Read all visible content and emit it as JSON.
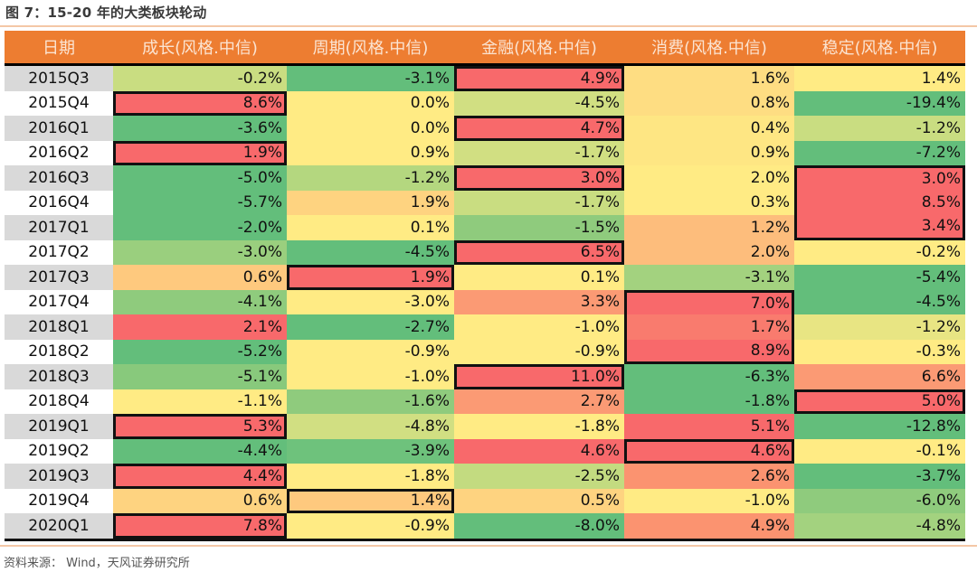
{
  "title": "图 7：15-20 年的大类板块轮动",
  "source": "资料来源：  Wind，天风证券研究所",
  "header": [
    "日期",
    "成长(风格.中信)",
    "周期(风格.中信)",
    "金融(风格.中信)",
    "消费(风格.中信)",
    "稳定(风格.中信)"
  ],
  "colors": {
    "header_bg": "#ED7D31",
    "red": "#F8696B",
    "red_orange": "#F98570",
    "orange": "#FB9A74",
    "light_orange": "#FDBD7C",
    "pale_orange": "#FED380",
    "yellow": "#FFEB84",
    "yellow_green": "#D1DF82",
    "light_green": "#B4D77F",
    "mid_green": "#8FCB7D",
    "green": "#63BE7B",
    "date_gray": "#D9D9D9",
    "date_white": "#FFFFFF"
  },
  "chart_data": {
    "type": "table",
    "title": "图 7：15-20 年的大类板块轮动",
    "columns": [
      "日期",
      "成长(风格.中信)",
      "周期(风格.中信)",
      "金融(风格.中信)",
      "消费(风格.中信)",
      "稳定(风格.中信)"
    ],
    "rows": [
      {
        "date": "2015Q3",
        "values": [
          "-0.2%",
          "-3.1%",
          "4.9%",
          "1.6%",
          "1.4%"
        ],
        "fills": [
          "#C9DD81",
          "#63BE7B",
          "#F8696B",
          "#FEDD82",
          "#FFEB84"
        ],
        "boxed": [
          false,
          false,
          true,
          false,
          false
        ]
      },
      {
        "date": "2015Q4",
        "values": [
          "8.6%",
          "0.0%",
          "-4.5%",
          "0.8%",
          "-19.4%"
        ],
        "fills": [
          "#F8696B",
          "#FFEB84",
          "#D1DF82",
          "#FEDD82",
          "#63BE7B"
        ],
        "boxed": [
          true,
          false,
          false,
          false,
          false
        ]
      },
      {
        "date": "2016Q1",
        "values": [
          "-3.6%",
          "0.0%",
          "4.7%",
          "0.4%",
          "-1.2%"
        ],
        "fills": [
          "#63BE7B",
          "#FFEB84",
          "#F8696B",
          "#FEE683",
          "#C9DD81"
        ],
        "boxed": [
          false,
          false,
          true,
          false,
          false
        ]
      },
      {
        "date": "2016Q2",
        "values": [
          "1.9%",
          "0.9%",
          "-1.7%",
          "0.9%",
          "-7.2%"
        ],
        "fills": [
          "#F8696B",
          "#FFEB84",
          "#D1DF82",
          "#FEE683",
          "#63BE7B"
        ],
        "boxed": [
          true,
          false,
          false,
          false,
          false
        ]
      },
      {
        "date": "2016Q3",
        "values": [
          "-5.0%",
          "-1.2%",
          "3.0%",
          "2.0%",
          "3.0%"
        ],
        "fills": [
          "#63BE7B",
          "#B4D77F",
          "#F8696B",
          "#FFEB84",
          "#F8696B"
        ],
        "boxed": [
          false,
          false,
          true,
          false,
          true
        ]
      },
      {
        "date": "2016Q4",
        "values": [
          "-5.7%",
          "1.9%",
          "-1.7%",
          "0.3%",
          "8.5%"
        ],
        "fills": [
          "#63BE7B",
          "#FED380",
          "#C9DD81",
          "#FFEB84",
          "#F8696B"
        ],
        "boxed": [
          false,
          false,
          false,
          false,
          true
        ]
      },
      {
        "date": "2017Q1",
        "values": [
          "-2.0%",
          "0.1%",
          "-1.5%",
          "1.2%",
          "3.4%"
        ],
        "fills": [
          "#63BE7B",
          "#FFEB84",
          "#8FCB7D",
          "#FDBD7C",
          "#F8696B"
        ],
        "boxed": [
          false,
          false,
          false,
          false,
          true
        ]
      },
      {
        "date": "2017Q2",
        "values": [
          "-3.0%",
          "-4.5%",
          "6.5%",
          "2.0%",
          "-0.2%"
        ],
        "fills": [
          "#9ACF7E",
          "#63BE7B",
          "#F8696B",
          "#FDBD7C",
          "#FFEB84"
        ],
        "boxed": [
          false,
          false,
          true,
          false,
          false
        ]
      },
      {
        "date": "2017Q3",
        "values": [
          "0.6%",
          "1.9%",
          "0.1%",
          "-3.1%",
          "-5.4%"
        ],
        "fills": [
          "#FEC97E",
          "#F8696B",
          "#FFEB84",
          "#A3D27F",
          "#63BE7B"
        ],
        "boxed": [
          false,
          true,
          false,
          false,
          false
        ]
      },
      {
        "date": "2017Q4",
        "values": [
          "-4.1%",
          "-3.0%",
          "3.3%",
          "7.0%",
          "-4.5%"
        ],
        "fills": [
          "#8FCB7D",
          "#FFEB84",
          "#FB9A74",
          "#F8696B",
          "#63BE7B"
        ],
        "boxed": [
          false,
          false,
          false,
          true,
          false
        ]
      },
      {
        "date": "2018Q1",
        "values": [
          "2.1%",
          "-2.7%",
          "-1.0%",
          "1.7%",
          "-1.2%"
        ],
        "fills": [
          "#F8696B",
          "#63BE7B",
          "#FFEB84",
          "#F97B6E",
          "#E8E583"
        ],
        "boxed": [
          false,
          false,
          false,
          true,
          false
        ]
      },
      {
        "date": "2018Q2",
        "values": [
          "-5.2%",
          "-0.9%",
          "-0.9%",
          "8.9%",
          "-0.3%"
        ],
        "fills": [
          "#63BE7B",
          "#FFEB84",
          "#FFEB84",
          "#F8696B",
          "#FFEB84"
        ],
        "boxed": [
          false,
          false,
          false,
          true,
          false
        ]
      },
      {
        "date": "2018Q3",
        "values": [
          "-5.1%",
          "-1.0%",
          "11.0%",
          "-6.3%",
          "6.6%"
        ],
        "fills": [
          "#88C97C",
          "#FFEB84",
          "#F8696B",
          "#63BE7B",
          "#FB9A74"
        ],
        "boxed": [
          false,
          false,
          true,
          false,
          false
        ]
      },
      {
        "date": "2018Q4",
        "values": [
          "-1.1%",
          "-1.6%",
          "2.7%",
          "-1.8%",
          "5.0%"
        ],
        "fills": [
          "#FFEB84",
          "#8FCB7D",
          "#FB9A74",
          "#63BE7B",
          "#F8696B"
        ],
        "boxed": [
          false,
          false,
          false,
          false,
          true
        ]
      },
      {
        "date": "2019Q1",
        "values": [
          "5.3%",
          "-4.8%",
          "-1.8%",
          "5.1%",
          "-12.8%"
        ],
        "fills": [
          "#F8696B",
          "#D1DF82",
          "#FFEB84",
          "#F8696B",
          "#63BE7B"
        ],
        "boxed": [
          true,
          false,
          false,
          false,
          false
        ]
      },
      {
        "date": "2019Q2",
        "values": [
          "-4.4%",
          "-3.9%",
          "4.6%",
          "4.6%",
          "-0.1%"
        ],
        "fills": [
          "#63BE7B",
          "#6EC27C",
          "#F8696B",
          "#F8696B",
          "#FFEB84"
        ],
        "boxed": [
          false,
          false,
          false,
          true,
          false
        ]
      },
      {
        "date": "2019Q3",
        "values": [
          "4.4%",
          "-1.8%",
          "-2.5%",
          "2.6%",
          "-3.7%"
        ],
        "fills": [
          "#F8696B",
          "#FFEB84",
          "#C3DB80",
          "#FB9370",
          "#63BE7B"
        ],
        "boxed": [
          true,
          false,
          false,
          false,
          false
        ]
      },
      {
        "date": "2019Q4",
        "values": [
          "0.6%",
          "1.4%",
          "0.5%",
          "-1.0%",
          "-6.0%"
        ],
        "fills": [
          "#FED380",
          "#FEC97E",
          "#FED380",
          "#FFEB84",
          "#8FCB7D"
        ],
        "boxed": [
          false,
          true,
          false,
          false,
          false
        ]
      },
      {
        "date": "2020Q1",
        "values": [
          "7.8%",
          "-0.9%",
          "-8.0%",
          "4.9%",
          "-4.8%"
        ],
        "fills": [
          "#F8696B",
          "#FFEB84",
          "#63BE7B",
          "#FB9370",
          "#A3D27F"
        ],
        "boxed": [
          true,
          false,
          false,
          false,
          false
        ]
      }
    ]
  }
}
